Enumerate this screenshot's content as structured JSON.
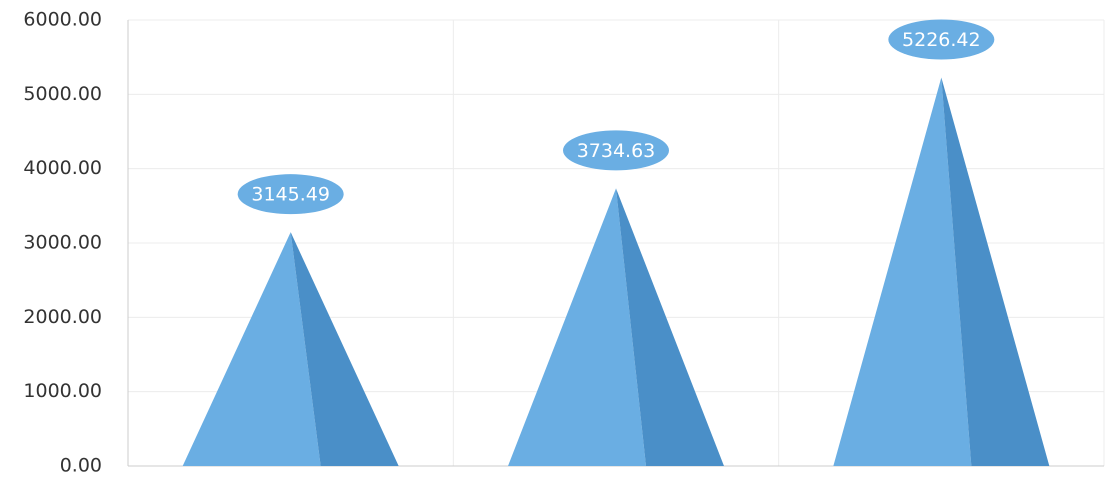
{
  "chart_data": {
    "type": "pyramid",
    "categories": [
      null,
      null,
      null
    ],
    "values": [
      3145.49,
      3734.63,
      5226.42
    ],
    "color": "#6aaee3",
    "side_color": "#4a8fc8",
    "label_color": "#6aaee3",
    "ylim": [
      0,
      6000
    ],
    "yticks": [
      {
        "value": 0,
        "label": "0.00"
      },
      {
        "value": 1000,
        "label": "1000.00"
      },
      {
        "value": 2000,
        "label": "2000.00"
      },
      {
        "value": 3000,
        "label": "3000.00"
      },
      {
        "value": 4000,
        "label": "4000.00"
      },
      {
        "value": 5000,
        "label": "5000.00"
      },
      {
        "value": 6000,
        "label": "6000.00"
      }
    ],
    "grid": true
  }
}
